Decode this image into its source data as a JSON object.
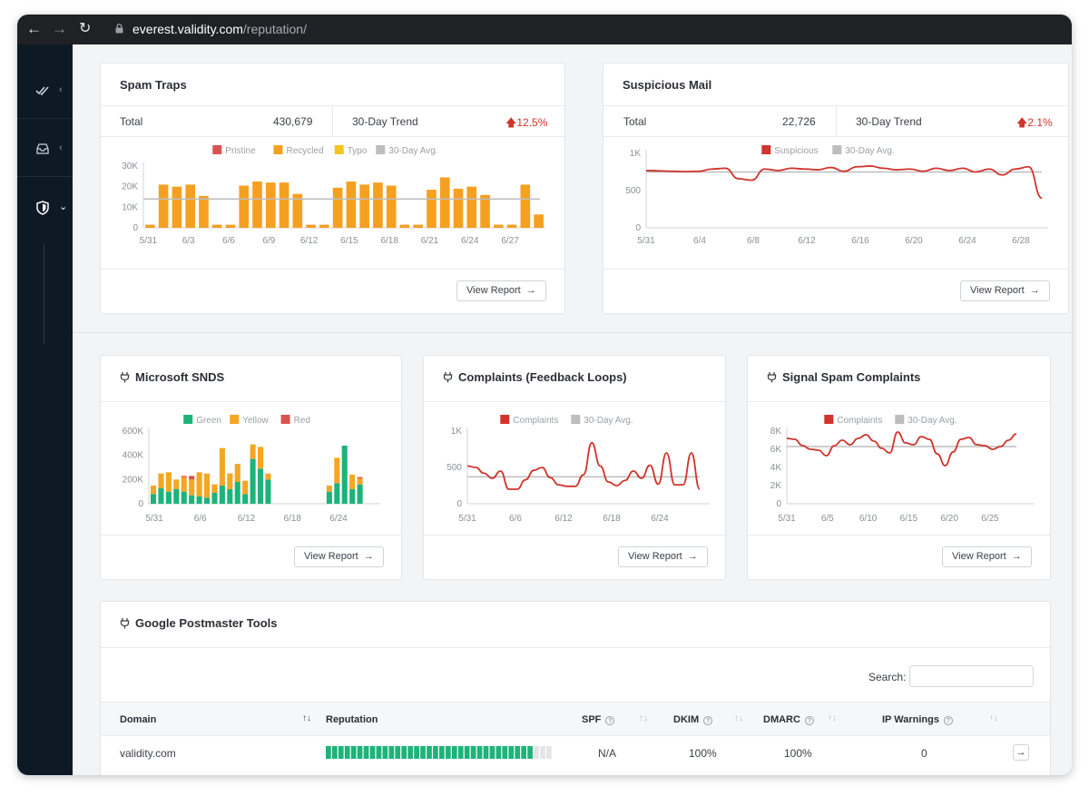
{
  "browser": {
    "url_host": "everest.validity.com",
    "url_path": "/reputation/"
  },
  "spam_traps": {
    "title": "Spam Traps",
    "total_label": "Total",
    "total_value": "430,679",
    "trend_label": "30-Day Trend",
    "trend_value": "12.5%",
    "button": "View Report",
    "legend": [
      "Pristine",
      "Recycled",
      "Typo",
      "30-Day Avg."
    ]
  },
  "suspicious_mail": {
    "title": "Suspicious Mail",
    "total_label": "Total",
    "total_value": "22,726",
    "trend_label": "30-Day Trend",
    "trend_value": "2.1%",
    "button": "View Report",
    "legend": [
      "Suspicious",
      "30-Day Avg."
    ]
  },
  "snds": {
    "title": "Microsoft SNDS",
    "button": "View Report",
    "legend": [
      "Green",
      "Yellow",
      "Red"
    ]
  },
  "complaints": {
    "title": "Complaints (Feedback Loops)",
    "button": "View Report",
    "legend": [
      "Complaints",
      "30-Day Avg."
    ]
  },
  "signal_spam": {
    "title": "Signal Spam Complaints",
    "button": "View Report",
    "legend": [
      "Complaints",
      "30-Day Avg."
    ]
  },
  "postmaster": {
    "title": "Google Postmaster Tools",
    "search_label": "Search:",
    "search_value": "",
    "columns": [
      "Domain",
      "Reputation",
      "SPF",
      "DKIM",
      "DMARC",
      "IP Warnings"
    ],
    "rows": [
      {
        "domain": "validity.com",
        "reputation": 0.94,
        "spf": "N/A",
        "dkim": "100%",
        "dmarc": "100%",
        "ip_warnings": "0"
      }
    ]
  },
  "colors": {
    "pristine": "#d9534f",
    "recycled": "#f5a020",
    "typo": "#f7c31e",
    "avg": "#bdbdbd",
    "line": "#d0342c",
    "green": "#1db37a",
    "yellow": "#f5a623",
    "red": "#d9534f"
  },
  "chart_data": [
    {
      "id": "spam_traps",
      "type": "bar",
      "x": [
        "5/31",
        "6/1",
        "6/2",
        "6/3",
        "6/4",
        "6/5",
        "6/6",
        "6/7",
        "6/8",
        "6/9",
        "6/10",
        "6/11",
        "6/12",
        "6/13",
        "6/14",
        "6/15",
        "6/16",
        "6/17",
        "6/18",
        "6/19",
        "6/20",
        "6/21",
        "6/22",
        "6/23",
        "6/24",
        "6/25",
        "6/26",
        "6/27",
        "6/28",
        "6/29"
      ],
      "xticks": [
        "5/31",
        "6/3",
        "6/6",
        "6/9",
        "6/12",
        "6/15",
        "6/18",
        "6/21",
        "6/24",
        "6/27"
      ],
      "yticks": [
        "0",
        "10K",
        "20K",
        "30K"
      ],
      "ylim": [
        0,
        30000
      ],
      "series": [
        {
          "name": "Pristine",
          "values": [
            0,
            0,
            0,
            0,
            0,
            0,
            0,
            0,
            0,
            0,
            0,
            0,
            0,
            0,
            0,
            0,
            0,
            0,
            0,
            0,
            0,
            0,
            0,
            0,
            0,
            0,
            0,
            0,
            0,
            0
          ]
        },
        {
          "name": "Recycled",
          "values": [
            1500,
            21000,
            20000,
            21000,
            15500,
            1500,
            1500,
            20500,
            22500,
            22000,
            22000,
            16500,
            1500,
            1500,
            19500,
            22500,
            21000,
            22000,
            20500,
            1500,
            1500,
            18500,
            24500,
            19000,
            20000,
            16000,
            1500,
            1500,
            21000,
            6500
          ]
        },
        {
          "name": "Typo",
          "values": [
            0,
            0,
            0,
            0,
            0,
            0,
            0,
            0,
            0,
            0,
            0,
            0,
            0,
            0,
            0,
            0,
            0,
            0,
            0,
            0,
            0,
            0,
            0,
            0,
            0,
            0,
            0,
            0,
            0,
            0
          ]
        }
      ],
      "avg": 14000,
      "legend": [
        "Pristine",
        "Recycled",
        "Typo",
        "30-Day Avg."
      ]
    },
    {
      "id": "suspicious_mail",
      "type": "line",
      "xticks": [
        "5/31",
        "6/4",
        "6/8",
        "6/12",
        "6/16",
        "6/20",
        "6/24",
        "6/28"
      ],
      "yticks": [
        "0",
        "500",
        "1K"
      ],
      "ylim": [
        0,
        1000
      ],
      "series": [
        {
          "name": "Suspicious",
          "values": [
            770,
            765,
            760,
            755,
            760,
            790,
            800,
            660,
            640,
            790,
            770,
            800,
            790,
            780,
            810,
            760,
            820,
            830,
            800,
            780,
            790,
            760,
            800,
            770,
            800,
            750,
            790,
            710,
            790,
            820,
            400
          ]
        }
      ],
      "avg": 750,
      "legend": [
        "Suspicious",
        "30-Day Avg."
      ]
    },
    {
      "id": "snds",
      "type": "bar",
      "xticks": [
        "5/31",
        "6/6",
        "6/12",
        "6/18",
        "6/24"
      ],
      "yticks": [
        "0",
        "200K",
        "400K",
        "600K"
      ],
      "ylim": [
        0,
        600000
      ],
      "series": [
        {
          "name": "Green",
          "values": [
            80000,
            130000,
            100000,
            120000,
            100000,
            70000,
            60000,
            50000,
            90000,
            150000,
            120000,
            180000,
            80000,
            370000,
            290000,
            200000,
            0,
            0,
            0,
            0,
            0,
            0,
            0,
            100000,
            170000,
            480000,
            120000,
            160000
          ]
        },
        {
          "name": "Yellow",
          "values": [
            70000,
            120000,
            160000,
            80000,
            120000,
            130000,
            200000,
            200000,
            70000,
            310000,
            130000,
            150000,
            110000,
            120000,
            180000,
            50000,
            0,
            0,
            0,
            0,
            0,
            0,
            0,
            50000,
            210000,
            0,
            120000,
            50000
          ]
        },
        {
          "name": "Red",
          "values": [
            0,
            0,
            0,
            0,
            10000,
            30000,
            0,
            0,
            0,
            0,
            0,
            0,
            0,
            0,
            0,
            0,
            0,
            0,
            0,
            0,
            0,
            0,
            0,
            0,
            0,
            0,
            0,
            10000
          ]
        }
      ],
      "legend": [
        "Green",
        "Yellow",
        "Red"
      ]
    },
    {
      "id": "complaints",
      "type": "line",
      "xticks": [
        "5/31",
        "6/6",
        "6/12",
        "6/18",
        "6/24"
      ],
      "yticks": [
        "0",
        "500",
        "1K"
      ],
      "ylim": [
        0,
        1000
      ],
      "series": [
        {
          "name": "Complaints",
          "values": [
            520,
            500,
            420,
            350,
            450,
            200,
            200,
            330,
            460,
            500,
            360,
            260,
            240,
            240,
            400,
            840,
            520,
            300,
            250,
            320,
            450,
            350,
            530,
            270,
            700,
            260,
            260,
            700,
            200
          ]
        }
      ],
      "avg": 370,
      "legend": [
        "Complaints",
        "30-Day Avg."
      ]
    },
    {
      "id": "signal_spam",
      "type": "line",
      "xticks": [
        "5/31",
        "6/5",
        "6/10",
        "6/15",
        "6/20",
        "6/25"
      ],
      "yticks": [
        "0",
        "2K",
        "4K",
        "6K",
        "8K"
      ],
      "ylim": [
        0,
        8000
      ],
      "series": [
        {
          "name": "Complaints",
          "values": [
            7200,
            7100,
            6400,
            6000,
            5900,
            5300,
            6400,
            7000,
            6500,
            7200,
            7600,
            6900,
            6100,
            5600,
            7900,
            6700,
            6500,
            7400,
            7100,
            5500,
            4200,
            5700,
            7100,
            7300,
            6500,
            6400,
            6000,
            6300,
            7000,
            7700
          ]
        }
      ],
      "avg": 6300,
      "legend": [
        "Complaints",
        "30-Day Avg."
      ]
    }
  ]
}
